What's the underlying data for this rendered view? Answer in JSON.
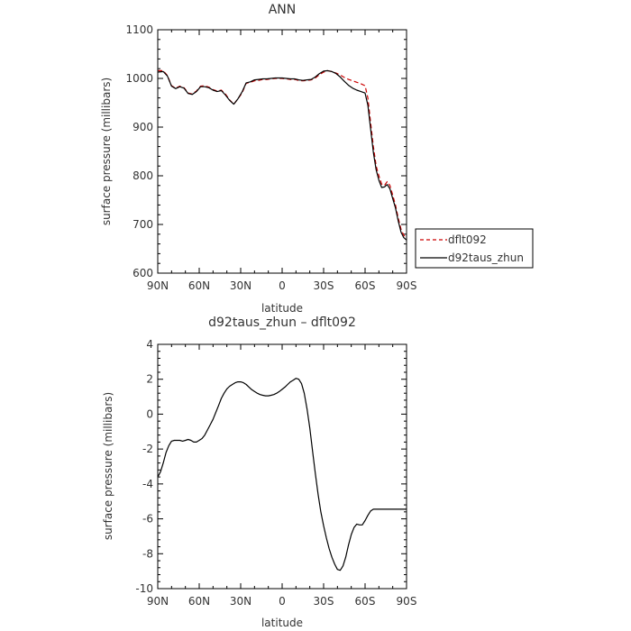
{
  "chart_data": [
    {
      "type": "line",
      "title": "ANN",
      "xlabel": "latitude",
      "ylabel": "surface pressure (millibars)",
      "xlim": [
        90,
        -90
      ],
      "ylim": [
        600,
        1100
      ],
      "x_ticks": [
        {
          "value": 90,
          "label": "90N"
        },
        {
          "value": 60,
          "label": "60N"
        },
        {
          "value": 30,
          "label": "30N"
        },
        {
          "value": 0,
          "label": "0"
        },
        {
          "value": -30,
          "label": "30S"
        },
        {
          "value": -60,
          "label": "60S"
        },
        {
          "value": -90,
          "label": "90S"
        }
      ],
      "y_ticks": [
        600,
        700,
        800,
        900,
        1000,
        1100
      ],
      "legend": "outside-right",
      "series": [
        {
          "name": "dflt092",
          "color": "#cc0000",
          "dash": "dashed",
          "x": [
            90,
            86,
            83,
            80,
            77,
            74,
            71,
            68,
            65,
            62,
            59,
            56,
            53,
            50,
            47,
            44,
            41,
            38,
            35,
            32,
            29,
            26,
            23,
            20,
            17,
            14,
            11,
            8,
            5,
            2,
            0,
            -3,
            -6,
            -9,
            -12,
            -15,
            -18,
            -21,
            -24,
            -27,
            -30,
            -33,
            -36,
            -39,
            -42,
            -45,
            -48,
            -51,
            -54,
            -57,
            -60,
            -62,
            -64,
            -66,
            -68,
            -70,
            -72,
            -74,
            -76,
            -78,
            -80,
            -82,
            -84,
            -86,
            -88,
            -90
          ],
          "values": [
            1016,
            1016,
            1006,
            985,
            980,
            984,
            981,
            970,
            968,
            974,
            984,
            985,
            982,
            977,
            974,
            976,
            968,
            956,
            947,
            958,
            970,
            990,
            992,
            995,
            996,
            998,
            998,
            999,
            1000,
            1000,
            1000,
            999,
            998,
            998,
            996,
            995,
            996,
            997,
            1001,
            1008,
            1013,
            1016,
            1014,
            1011,
            1007,
            1002,
            998,
            995,
            992,
            989,
            985,
            960,
            910,
            860,
            820,
            800,
            783,
            780,
            788,
            780,
            760,
            740,
            713,
            690,
            678,
            672
          ]
        },
        {
          "name": "d92taus_zhun",
          "color": "#000000",
          "dash": "solid",
          "x": [
            90,
            86,
            83,
            80,
            77,
            74,
            71,
            68,
            65,
            62,
            59,
            56,
            53,
            50,
            47,
            44,
            41,
            38,
            35,
            32,
            29,
            26,
            23,
            20,
            17,
            14,
            11,
            8,
            5,
            2,
            0,
            -3,
            -6,
            -9,
            -12,
            -15,
            -18,
            -21,
            -24,
            -27,
            -30,
            -33,
            -36,
            -39,
            -42,
            -45,
            -48,
            -51,
            -54,
            -57,
            -60,
            -62,
            -64,
            -66,
            -68,
            -70,
            -72,
            -74,
            -76,
            -78,
            -80,
            -82,
            -84,
            -86,
            -88,
            -90
          ],
          "values": [
            1013,
            1014,
            1005,
            984,
            979,
            983,
            980,
            969,
            967,
            973,
            983,
            983,
            981,
            976,
            973,
            975,
            966,
            955,
            947,
            958,
            972,
            991,
            993,
            997,
            998,
            999,
            999,
            1000,
            1001,
            1001,
            1001,
            1000,
            999,
            999,
            997,
            996,
            997,
            998,
            1003,
            1010,
            1015,
            1016,
            1014,
            1010,
            1003,
            994,
            986,
            980,
            976,
            973,
            970,
            945,
            897,
            848,
            812,
            791,
            776,
            777,
            782,
            773,
            753,
            734,
            707,
            684,
            673,
            668
          ]
        }
      ]
    },
    {
      "type": "line",
      "title": "d92taus_zhun – dflt092",
      "xlabel": "latitude",
      "ylabel": "surface pressure (millibars)",
      "xlim": [
        90,
        -90
      ],
      "ylim": [
        -10,
        4
      ],
      "x_ticks": [
        {
          "value": 90,
          "label": "90N"
        },
        {
          "value": 60,
          "label": "60N"
        },
        {
          "value": 30,
          "label": "30N"
        },
        {
          "value": 0,
          "label": "0"
        },
        {
          "value": -30,
          "label": "30S"
        },
        {
          "value": -60,
          "label": "60S"
        },
        {
          "value": -90,
          "label": "90S"
        }
      ],
      "y_ticks": [
        -10,
        -8,
        -6,
        -4,
        -2,
        0,
        2,
        4
      ],
      "series": [
        {
          "color": "#000000",
          "dash": "solid",
          "x": [
            90,
            88,
            86,
            84,
            82,
            80,
            78,
            76,
            74,
            72,
            70,
            68,
            66,
            64,
            62,
            60,
            58,
            56,
            54,
            52,
            50,
            48,
            46,
            44,
            42,
            40,
            38,
            36,
            34,
            32,
            30,
            28,
            26,
            24,
            22,
            20,
            18,
            16,
            14,
            12,
            10,
            8,
            6,
            4,
            2,
            0,
            -2,
            -4,
            -6,
            -8,
            -10,
            -12,
            -14,
            -16,
            -18,
            -20,
            -22,
            -24,
            -26,
            -28,
            -30,
            -32,
            -34,
            -36,
            -38,
            -40,
            -42,
            -44,
            -46,
            -48,
            -50,
            -52,
            -54,
            -56,
            -58,
            -60,
            -62,
            -64,
            -66,
            -68,
            -70,
            -72,
            -74,
            -76,
            -78,
            -80,
            -82,
            -84,
            -86,
            -88,
            -90
          ],
          "values": [
            -3.6,
            -3.3,
            -2.8,
            -2.2,
            -1.8,
            -1.55,
            -1.5,
            -1.5,
            -1.5,
            -1.55,
            -1.5,
            -1.45,
            -1.5,
            -1.6,
            -1.6,
            -1.5,
            -1.4,
            -1.2,
            -0.9,
            -0.6,
            -0.3,
            0.1,
            0.5,
            0.9,
            1.2,
            1.45,
            1.6,
            1.7,
            1.8,
            1.85,
            1.85,
            1.8,
            1.7,
            1.55,
            1.4,
            1.3,
            1.2,
            1.12,
            1.08,
            1.05,
            1.05,
            1.08,
            1.12,
            1.2,
            1.3,
            1.42,
            1.55,
            1.7,
            1.85,
            1.95,
            2.05,
            2.0,
            1.75,
            1.2,
            0.3,
            -0.8,
            -2.1,
            -3.4,
            -4.6,
            -5.6,
            -6.4,
            -7.1,
            -7.7,
            -8.2,
            -8.6,
            -8.9,
            -8.95,
            -8.7,
            -8.2,
            -7.5,
            -6.9,
            -6.5,
            -6.3,
            -6.35,
            -6.35,
            -6.1,
            -5.8,
            -5.55,
            -5.45,
            -5.45,
            -5.45,
            -5.45,
            -5.45,
            -5.45,
            -5.45,
            -5.45,
            -5.45,
            -5.45,
            -5.45,
            -5.45,
            -5.45
          ]
        }
      ]
    }
  ]
}
